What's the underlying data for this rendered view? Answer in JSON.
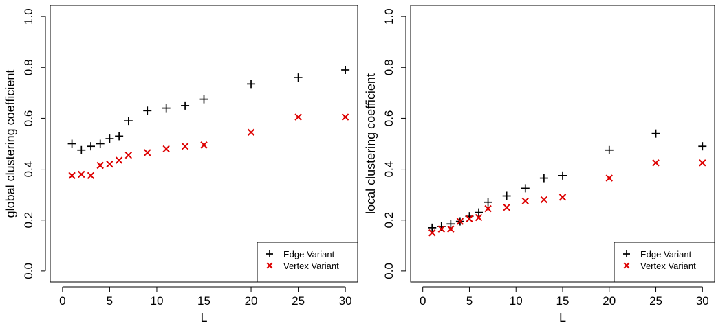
{
  "colors": {
    "edge": "#000000",
    "vertex": "#dd0000",
    "axis": "#000000"
  },
  "chart_data": [
    {
      "type": "scatter",
      "xlabel": "L",
      "ylabel": "global clustering coefficient",
      "xlim": [
        0,
        30
      ],
      "ylim": [
        0,
        1
      ],
      "xticks": [
        "0",
        "5",
        "10",
        "15",
        "20",
        "25",
        "30"
      ],
      "yticks": [
        "0.0",
        "0.2",
        "0.4",
        "0.6",
        "0.8",
        "1.0"
      ],
      "grid": false,
      "legend_position": "bottom-right",
      "series": [
        {
          "name": "Edge Variant",
          "marker": "plus",
          "x": [
            1,
            2,
            3,
            4,
            5,
            6,
            7,
            9,
            11,
            13,
            15,
            20,
            25,
            30
          ],
          "y": [
            0.5,
            0.475,
            0.49,
            0.5,
            0.52,
            0.53,
            0.59,
            0.63,
            0.64,
            0.65,
            0.675,
            0.735,
            0.76,
            0.79
          ]
        },
        {
          "name": "Vertex Variant",
          "marker": "cross",
          "x": [
            1,
            2,
            3,
            4,
            5,
            6,
            7,
            9,
            11,
            13,
            15,
            20,
            25,
            30
          ],
          "y": [
            0.375,
            0.38,
            0.375,
            0.415,
            0.42,
            0.435,
            0.455,
            0.465,
            0.48,
            0.49,
            0.495,
            0.545,
            0.605,
            0.605
          ]
        }
      ]
    },
    {
      "type": "scatter",
      "xlabel": "L",
      "ylabel": "local clustering coefficient",
      "xlim": [
        0,
        30
      ],
      "ylim": [
        0,
        1
      ],
      "xticks": [
        "0",
        "5",
        "10",
        "15",
        "20",
        "25",
        "30"
      ],
      "yticks": [
        "0.0",
        "0.2",
        "0.4",
        "0.6",
        "0.8",
        "1.0"
      ],
      "grid": false,
      "legend_position": "bottom-right",
      "series": [
        {
          "name": "Edge Variant",
          "marker": "plus",
          "x": [
            1,
            2,
            3,
            4,
            5,
            6,
            7,
            9,
            11,
            13,
            15,
            20,
            25,
            30
          ],
          "y": [
            0.17,
            0.175,
            0.185,
            0.195,
            0.215,
            0.23,
            0.27,
            0.295,
            0.325,
            0.365,
            0.375,
            0.475,
            0.54,
            0.49
          ]
        },
        {
          "name": "Vertex Variant",
          "marker": "cross",
          "x": [
            1,
            2,
            3,
            4,
            5,
            6,
            7,
            9,
            11,
            13,
            15,
            20,
            25,
            30
          ],
          "y": [
            0.15,
            0.165,
            0.165,
            0.195,
            0.205,
            0.21,
            0.245,
            0.25,
            0.275,
            0.28,
            0.29,
            0.365,
            0.425,
            0.425
          ]
        }
      ]
    }
  ]
}
